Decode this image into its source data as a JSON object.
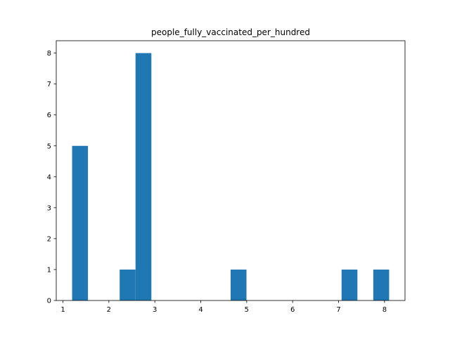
{
  "chart_data": {
    "type": "bar",
    "title": "people_fully_vaccinated_per_hundred",
    "xlabel": "",
    "ylabel": "",
    "xlim": [
      0.8545,
      8.4455
    ],
    "ylim": [
      0,
      8.4
    ],
    "x_ticks": [
      1,
      2,
      3,
      4,
      5,
      6,
      7,
      8
    ],
    "y_ticks": [
      0,
      1,
      2,
      3,
      4,
      5,
      6,
      7,
      8
    ],
    "grid": false,
    "bar_color": "#1f77b4",
    "bins": [
      {
        "x0": 1.2,
        "x1": 1.545,
        "count": 5
      },
      {
        "x0": 1.545,
        "x1": 1.89,
        "count": 0
      },
      {
        "x0": 1.89,
        "x1": 2.235,
        "count": 0
      },
      {
        "x0": 2.235,
        "x1": 2.58,
        "count": 1
      },
      {
        "x0": 2.58,
        "x1": 2.925,
        "count": 8
      },
      {
        "x0": 2.925,
        "x1": 3.27,
        "count": 0
      },
      {
        "x0": 3.27,
        "x1": 3.615,
        "count": 0
      },
      {
        "x0": 3.615,
        "x1": 3.96,
        "count": 0
      },
      {
        "x0": 3.96,
        "x1": 4.305,
        "count": 0
      },
      {
        "x0": 4.305,
        "x1": 4.65,
        "count": 0
      },
      {
        "x0": 4.65,
        "x1": 4.995,
        "count": 1
      },
      {
        "x0": 4.995,
        "x1": 5.34,
        "count": 0
      },
      {
        "x0": 5.34,
        "x1": 5.685,
        "count": 0
      },
      {
        "x0": 5.685,
        "x1": 6.03,
        "count": 0
      },
      {
        "x0": 6.03,
        "x1": 6.375,
        "count": 0
      },
      {
        "x0": 6.375,
        "x1": 6.72,
        "count": 0
      },
      {
        "x0": 6.72,
        "x1": 7.065,
        "count": 0
      },
      {
        "x0": 7.065,
        "x1": 7.41,
        "count": 1
      },
      {
        "x0": 7.41,
        "x1": 7.755,
        "count": 0
      },
      {
        "x0": 7.755,
        "x1": 8.1,
        "count": 1
      }
    ]
  }
}
